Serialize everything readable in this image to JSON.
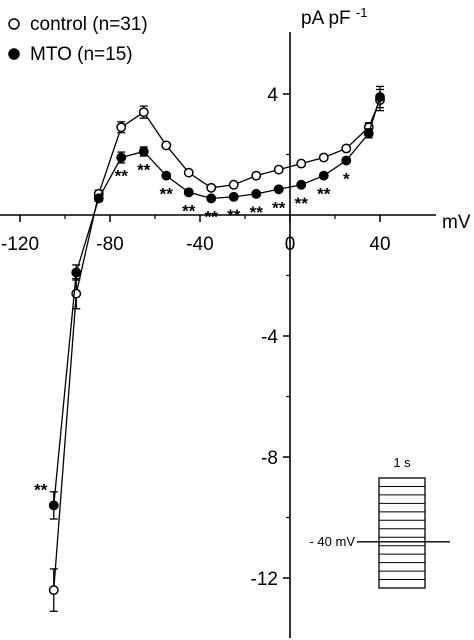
{
  "chart_data": {
    "type": "scatter",
    "xlabel": "mV",
    "ylabel": "pA pF",
    "ylabel_superscript": "-1",
    "xlim": [
      -130,
      52
    ],
    "ylim": [
      -13.5,
      6
    ],
    "x_ticks": [
      -120,
      -80,
      -40,
      0,
      40
    ],
    "y_ticks": [
      4,
      -4,
      -8,
      -12
    ],
    "legend_position": "top-left",
    "series": [
      {
        "name": "control (n=31)",
        "marker": "open-circle",
        "color": "#000000",
        "x": [
          -105,
          -95,
          -85,
          -75,
          -65,
          -55,
          -45,
          -35,
          -25,
          -15,
          -5,
          5,
          15,
          25,
          35,
          40
        ],
        "y": [
          -12.4,
          -2.6,
          0.7,
          2.9,
          3.4,
          2.3,
          1.4,
          0.9,
          1.0,
          1.3,
          1.5,
          1.7,
          1.9,
          2.2,
          2.9,
          3.8
        ],
        "err": [
          0.7,
          0.5,
          0.12,
          0.18,
          0.2,
          0,
          0,
          0,
          0,
          0,
          0,
          0,
          0,
          0,
          0.15,
          0.35
        ]
      },
      {
        "name": "MTO (n=15)",
        "marker": "filled-circle",
        "color": "#000000",
        "x": [
          -105,
          -95,
          -85,
          -75,
          -65,
          -55,
          -45,
          -35,
          -25,
          -15,
          -5,
          5,
          15,
          25,
          35,
          40
        ],
        "y": [
          -9.6,
          -1.9,
          0.55,
          1.9,
          2.1,
          1.3,
          0.75,
          0.55,
          0.6,
          0.7,
          0.85,
          1.0,
          1.3,
          1.8,
          2.7,
          3.9
        ],
        "err": [
          0.45,
          0.25,
          0.1,
          0.18,
          0.15,
          0,
          0,
          0,
          0,
          0,
          0,
          0,
          0,
          0,
          0.15,
          0.35
        ]
      }
    ],
    "annotations": [
      {
        "x": -75,
        "text": "**"
      },
      {
        "x": -65,
        "text": "**"
      },
      {
        "x": -55,
        "text": "**"
      },
      {
        "x": -45,
        "text": "**"
      },
      {
        "x": -35,
        "text": "**"
      },
      {
        "x": -25,
        "text": "**"
      },
      {
        "x": -15,
        "text": "**"
      },
      {
        "x": -5,
        "text": "**"
      },
      {
        "x": 5,
        "text": "**"
      },
      {
        "x": 15,
        "text": "**"
      },
      {
        "x": 25,
        "text": "*"
      },
      {
        "x": -105,
        "text": "**"
      }
    ],
    "inset": {
      "duration_label": "1 s",
      "holding_label": "- 40 mV",
      "steps": 13
    }
  }
}
